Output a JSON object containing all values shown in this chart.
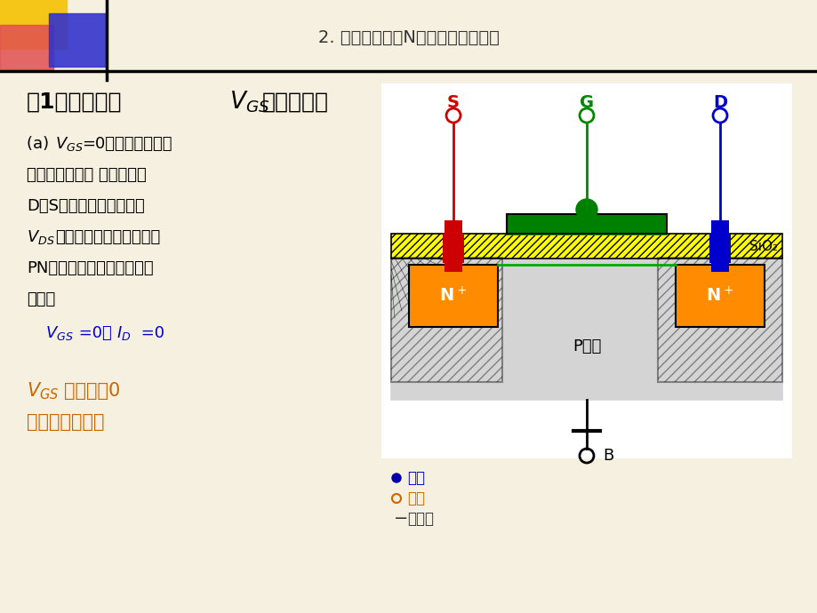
{
  "bg_color": "#f5f0e0",
  "title": "2. 工作原理（以N沟道增强型为例）",
  "title_color": "#333333",
  "title_fontsize": 14,
  "heading1": "（1）栅源电压",
  "heading1_vgs": "V",
  "heading1_sub": "GS",
  "heading1_rest": "的控制作用",
  "heading1_fontsize": 18,
  "body_text": [
    "(a)  V",
    "GS",
    "=0时，漏源之间相",
    "当两个背靠背的 二极管，在",
    "D、S之间加上电压，不管",
    "V",
    "DS",
    "极性如何，其中总有一个",
    "PN结反向，所以不存在导电",
    "沟道。"
  ],
  "vgs_eq_text": " V",
  "vgs_eq_sub": "GS",
  "vgs_eq_rest": " =0，   I",
  "id_eq_sub": "D",
  "id_eq_end": " =0",
  "bottom_text1": "V",
  "bottom_sub1": "GS",
  "bottom_rest1": "必须大于0",
  "bottom_text2": "管子才能工作。",
  "legend_electron": "电子",
  "legend_hole": "空穴",
  "legend_neg": "负离子",
  "diagram_bg": "#ffffff",
  "sio2_color": "#ffff00",
  "gate_color": "#008000",
  "nplus_color": "#ff8c00",
  "pbody_color": "#e8e8e8",
  "s_lead_color": "#cc0000",
  "g_lead_color": "#008800",
  "d_lead_color": "#0000cc",
  "substrate_label": "P衬底",
  "sio2_label": "SiO₂"
}
